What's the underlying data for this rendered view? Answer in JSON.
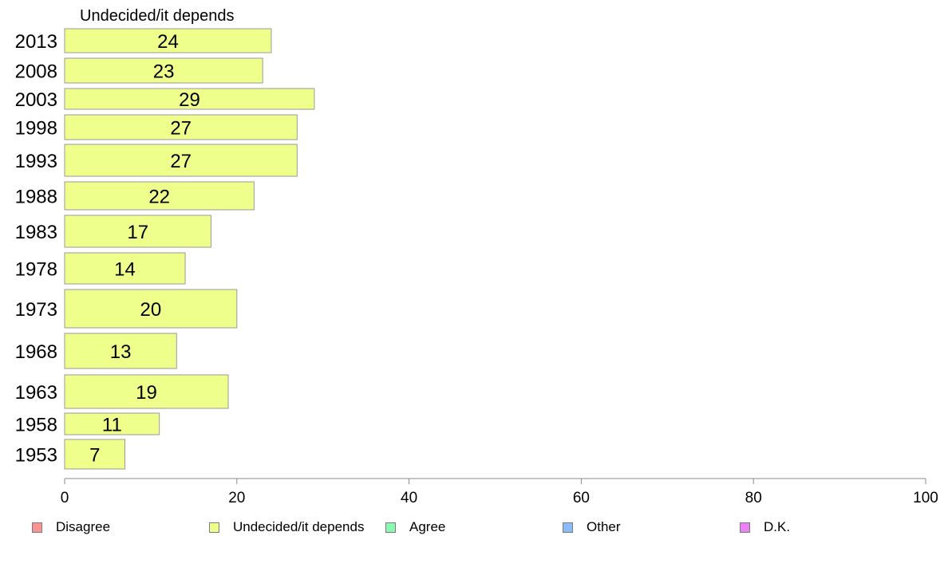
{
  "chart_data": {
    "type": "bar",
    "orientation": "horizontal",
    "title": "Undecided/it depends",
    "categories": [
      "2013",
      "2008",
      "2003",
      "1998",
      "1993",
      "1988",
      "1983",
      "1978",
      "1973",
      "1968",
      "1963",
      "1958",
      "1953"
    ],
    "values": [
      24,
      23,
      29,
      27,
      27,
      22,
      17,
      14,
      20,
      13,
      19,
      11,
      7
    ],
    "bar_color": "#eeff8c",
    "xlim": [
      0,
      100
    ],
    "xticks": [
      0,
      20,
      40,
      60,
      80,
      100
    ],
    "xlabel": "",
    "ylabel": "",
    "grid": false,
    "legend_position": "bottom",
    "legend": [
      {
        "label": "Disagree",
        "color": "#f79494"
      },
      {
        "label": "Undecided/it depends",
        "color": "#eeff8c"
      },
      {
        "label": "Agree",
        "color": "#8cf8b4"
      },
      {
        "label": "Other",
        "color": "#8cbcf8"
      },
      {
        "label": "D.K.",
        "color": "#ea82f2"
      }
    ]
  }
}
